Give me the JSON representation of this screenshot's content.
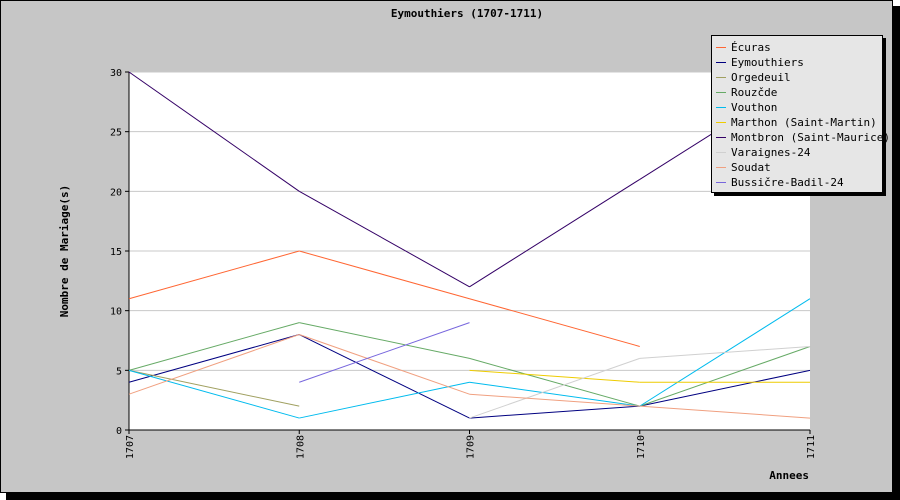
{
  "chart_data": {
    "type": "line",
    "title": "Eymouthiers (1707-1711)",
    "xlabel": "Annees",
    "ylabel": "Nombre de Mariage(s)",
    "categories": [
      "1707",
      "1708",
      "1709",
      "1710",
      "1711"
    ],
    "yticks": [
      "0",
      "5",
      "10",
      "15",
      "20",
      "25",
      "30"
    ],
    "ylim": [
      0,
      30
    ],
    "grid": true,
    "legend_position": "top-right",
    "series": [
      {
        "name": "Écuras",
        "color": "#ff6633",
        "values": [
          11,
          15,
          11,
          7,
          null
        ]
      },
      {
        "name": "Eymouthiers",
        "color": "#000080",
        "values": [
          4,
          8,
          1,
          2,
          5
        ]
      },
      {
        "name": "Orgedeuil",
        "color": "#a0a060",
        "values": [
          5,
          2,
          null,
          null,
          null
        ]
      },
      {
        "name": "Rouzčde",
        "color": "#66aa66",
        "values": [
          5,
          9,
          6,
          2,
          7
        ]
      },
      {
        "name": "Vouthon",
        "color": "#00bbee",
        "values": [
          5,
          1,
          4,
          2,
          11
        ]
      },
      {
        "name": "Marthon (Saint-Martin)",
        "color": "#eecc00",
        "values": [
          null,
          null,
          5,
          4,
          4
        ]
      },
      {
        "name": "Montbron (Saint-Maurice)",
        "color": "#330066",
        "values": [
          30,
          20,
          12,
          21,
          30
        ]
      },
      {
        "name": "Varaignes-24",
        "color": "#d0d0d0",
        "values": [
          null,
          null,
          1,
          6,
          7
        ]
      },
      {
        "name": "Soudat",
        "color": "#f0a080",
        "values": [
          3,
          8,
          3,
          2,
          1
        ]
      },
      {
        "name": "Bussičre-Badil-24",
        "color": "#7766dd",
        "values": [
          null,
          4,
          9,
          null,
          null
        ]
      }
    ]
  }
}
